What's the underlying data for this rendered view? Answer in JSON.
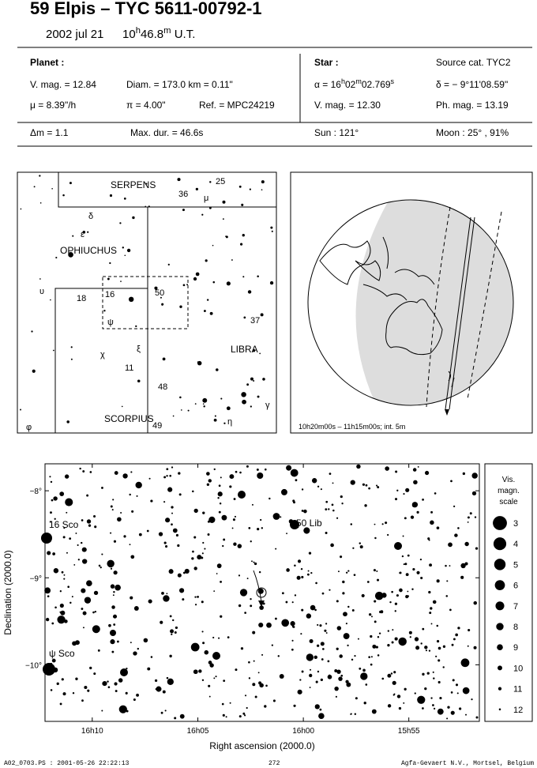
{
  "header": {
    "title": "59 Elpis  –  TYC 5611-00792-1",
    "date": "2002 jul 21",
    "time": [
      "10",
      "h",
      "46.8",
      "m",
      " U.T."
    ]
  },
  "info": {
    "planet": {
      "heading": "Planet :",
      "vmag": "V. mag. = 12.84",
      "diam": "Diam. = 173.0 km = 0.11\"",
      "mu": "μ =  8.39\"/h",
      "pi": "π =  4.00\"",
      "ref": "Ref. = MPC24219"
    },
    "star": {
      "heading": "Star :",
      "source": "Source cat.  TYC2",
      "alpha": [
        "α = 16",
        "h",
        "02",
        "m",
        "02.769",
        "s"
      ],
      "delta": "δ = − 9°11'08.59\"",
      "vmag": "V. mag. = 12.30",
      "phmag": "Ph. mag. = 13.19"
    },
    "event": {
      "dm": "Δm = 1.1",
      "maxdur": "Max. dur. = 46.6s",
      "sun": "Sun : 121°",
      "moon": "Moon :  25° , 91%"
    }
  },
  "finder": {
    "labels": [
      "SERPENS",
      "25",
      "36",
      "μ",
      "δ",
      "ε",
      "OPHIUCHUS",
      "υ",
      "18",
      "16",
      "50",
      "ψ",
      "37",
      "χ",
      "ξ",
      "LIBRA",
      "11",
      "48",
      "γ",
      "SCORPIUS",
      "η",
      "49",
      "φ"
    ]
  },
  "globe": {
    "caption": "10h20m00s – 11h15m00s; int.  5m"
  },
  "chart": {
    "xlabel": "Right ascension (2000.0)",
    "ylabel": "Declination (2000.0)",
    "xlim": [
      16.204,
      15.861
    ],
    "ylim": [
      -10.65,
      -7.69
    ],
    "xticks": [
      {
        "value": 16.1667,
        "label": "16h10"
      },
      {
        "value": 16.0833,
        "label": "16h05"
      },
      {
        "value": 16.0,
        "label": "16h00"
      },
      {
        "value": 15.9167,
        "label": "15h55"
      }
    ],
    "yticks": [
      {
        "value": -8,
        "label": "−8°"
      },
      {
        "value": -9,
        "label": "−9°"
      },
      {
        "value": -10,
        "label": "−10°"
      }
    ],
    "labels": [
      "16 Sco",
      "50 Lib",
      "ψ Sco"
    ]
  },
  "scale": {
    "title": [
      "Vis.",
      "magn.",
      "scale"
    ],
    "magnitudes": [
      3,
      4,
      5,
      6,
      7,
      8,
      9,
      10,
      11,
      12
    ]
  },
  "footer": {
    "file": "A02_0703.PS : 2001-05-26 22:22:13",
    "page": "272",
    "credit": "Agfa-Gevaert N.V., Mortsel, Belgium"
  }
}
